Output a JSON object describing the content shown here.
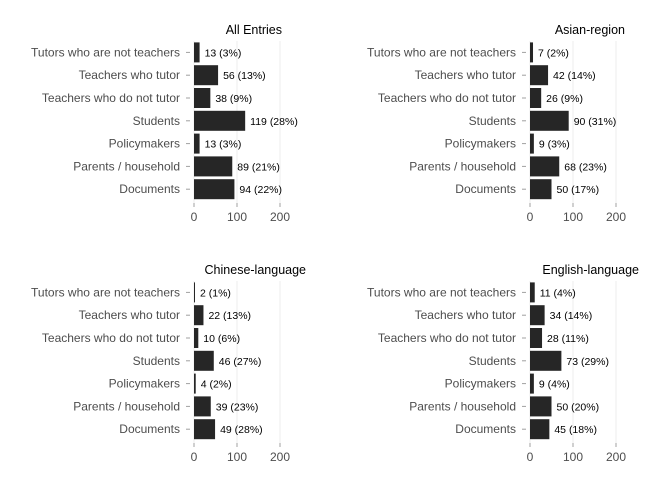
{
  "chart_data": [
    {
      "type": "bar",
      "orientation": "horizontal",
      "title": "All Entries",
      "categories": [
        "Tutors who are not teachers",
        "Teachers who tutor",
        "Teachers who do not tutor",
        "Students",
        "Policymakers",
        "Parents / household",
        "Documents"
      ],
      "values": [
        13,
        56,
        38,
        119,
        13,
        89,
        94
      ],
      "labels": [
        "13 (3%)",
        "56 (13%)",
        "38 (9%)",
        "119 (28%)",
        "13 (3%)",
        "89 (21%)",
        "94 (22%)"
      ],
      "xlim": [
        0,
        250
      ],
      "xticks": [
        0,
        100,
        200
      ],
      "grid": true,
      "bar_color": "#262626"
    },
    {
      "type": "bar",
      "orientation": "horizontal",
      "title": "Asian-region",
      "categories": [
        "Tutors who are not teachers",
        "Teachers who tutor",
        "Teachers who do not tutor",
        "Students",
        "Policymakers",
        "Parents / household",
        "Documents"
      ],
      "values": [
        7,
        42,
        26,
        90,
        9,
        68,
        50
      ],
      "labels": [
        "7 (2%)",
        "42 (14%)",
        "26 (9%)",
        "90 (31%)",
        "9 (3%)",
        "68 (23%)",
        "50 (17%)"
      ],
      "xlim": [
        0,
        250
      ],
      "xticks": [
        0,
        100,
        200
      ],
      "grid": true,
      "bar_color": "#262626"
    },
    {
      "type": "bar",
      "orientation": "horizontal",
      "title": "Chinese-language",
      "categories": [
        "Tutors who are not teachers",
        "Teachers who tutor",
        "Teachers who do not tutor",
        "Students",
        "Policymakers",
        "Parents / household",
        "Documents"
      ],
      "values": [
        2,
        22,
        10,
        46,
        4,
        39,
        49
      ],
      "labels": [
        "2 (1%)",
        "22 (13%)",
        "10 (6%)",
        "46 (27%)",
        "4 (2%)",
        "39 (23%)",
        "49 (28%)"
      ],
      "xlim": [
        0,
        250
      ],
      "xticks": [
        0,
        100,
        200
      ],
      "grid": true,
      "bar_color": "#262626"
    },
    {
      "type": "bar",
      "orientation": "horizontal",
      "title": "English-language",
      "categories": [
        "Tutors who are not teachers",
        "Teachers who tutor",
        "Teachers who do not tutor",
        "Students",
        "Policymakers",
        "Parents / household",
        "Documents"
      ],
      "values": [
        11,
        34,
        28,
        73,
        9,
        50,
        45
      ],
      "labels": [
        "11 (4%)",
        "34 (14%)",
        "28 (11%)",
        "73 (29%)",
        "9 (4%)",
        "50 (20%)",
        "45 (18%)"
      ],
      "xlim": [
        0,
        250
      ],
      "xticks": [
        0,
        100,
        200
      ],
      "grid": true,
      "bar_color": "#262626"
    }
  ]
}
